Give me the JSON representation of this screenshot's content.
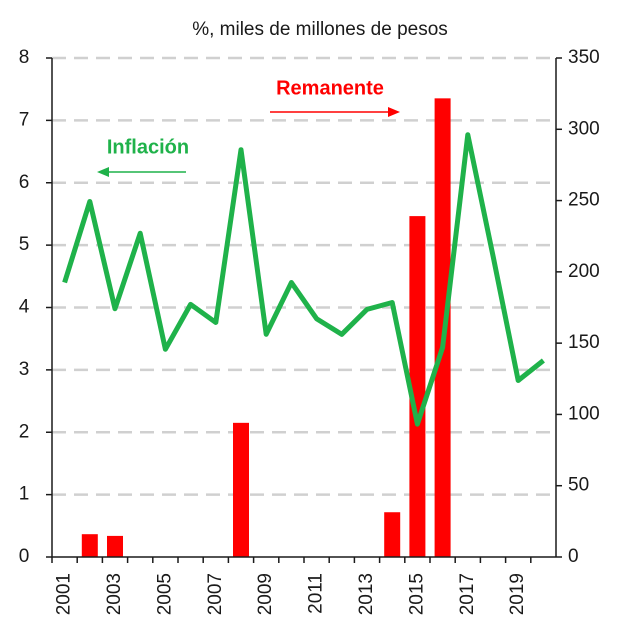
{
  "chart_data": {
    "type": "bar_line",
    "subtitle": "%, miles de millones de pesos",
    "categories": [
      "2001",
      null,
      "2003",
      null,
      "2005",
      null,
      "2007",
      null,
      "2009",
      null,
      "2011",
      null,
      "2013",
      null,
      "2015",
      null,
      "2017",
      null,
      "2019",
      null
    ],
    "series": [
      {
        "name": "Inflación",
        "type": "line",
        "color": "#1fb24a",
        "axis": "y",
        "values": [
          4.4,
          5.7,
          3.98,
          5.19,
          3.33,
          4.05,
          3.76,
          6.53,
          3.57,
          4.4,
          3.82,
          3.57,
          3.97,
          4.08,
          2.13,
          3.36,
          6.77,
          4.83,
          2.83,
          3.15
        ]
      },
      {
        "name": "Remanente",
        "type": "bar",
        "color": "#ff0000",
        "axis": "y2",
        "values": [
          null,
          16,
          14.8,
          null,
          null,
          null,
          null,
          94.1,
          null,
          null,
          null,
          null,
          null,
          31.4,
          239.1,
          321.7,
          null,
          null,
          null,
          null
        ]
      }
    ],
    "ylim": [
      0,
      8
    ],
    "yticks": [
      0,
      1,
      2,
      3,
      4,
      5,
      6,
      7,
      8
    ],
    "y2lim": [
      0,
      350
    ],
    "y2ticks": [
      0,
      50,
      100,
      150,
      200,
      250,
      300,
      350
    ],
    "grid": true
  }
}
